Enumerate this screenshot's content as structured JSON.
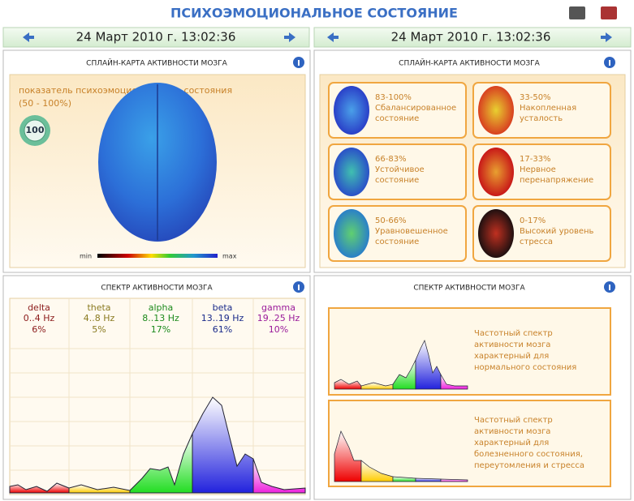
{
  "header": {
    "title": "ПСИХОЭМОЦИОНАЛЬНОЕ СОСТОЯНИЕ"
  },
  "nav": [
    {
      "datetime": "24 Март 2010 г. 13:02:36"
    },
    {
      "datetime": "24 Март 2010 г. 13:02:36"
    }
  ],
  "brain_map": {
    "title": "СПЛАЙН-КАРТА АКТИВНОСТИ МОЗГА",
    "indicator_label": "показатель психоэмоционального состояния",
    "indicator_range": "(50 - 100%)",
    "score": "100",
    "scale_min": "min",
    "scale_max": "max"
  },
  "legend": {
    "title": "СПЛАЙН-КАРТА АКТИВНОСТИ МОЗГА",
    "items": [
      {
        "range": "83-100%",
        "lines": [
          "Сбалансированное",
          "состояние"
        ]
      },
      {
        "range": "33-50%",
        "lines": [
          "Накопленная",
          "усталость"
        ]
      },
      {
        "range": "66-83%",
        "lines": [
          "Устойчивое",
          "состояние"
        ]
      },
      {
        "range": "17-33%",
        "lines": [
          "Нервное",
          "перенапряжение"
        ]
      },
      {
        "range": "50-66%",
        "lines": [
          "Уравновешенное",
          "состояние"
        ]
      },
      {
        "range": "0-17%",
        "lines": [
          "Высокий уровень",
          "стресса"
        ]
      }
    ]
  },
  "spectrum": {
    "title": "СПЕКТР АКТИВНОСТИ МОЗГА",
    "bands": [
      {
        "name": "delta",
        "freq": "0..4 Hz",
        "share": "6%"
      },
      {
        "name": "theta",
        "freq": "4..8 Hz",
        "share": "5%"
      },
      {
        "name": "alpha",
        "freq": "8..13 Hz",
        "share": "17%"
      },
      {
        "name": "beta",
        "freq": "13..19 Hz",
        "share": "61%"
      },
      {
        "name": "gamma",
        "freq": "19..25 Hz",
        "share": "10%"
      }
    ]
  },
  "reference": {
    "title": "СПЕКТР АКТИВНОСТИ МОЗГА",
    "cards": [
      {
        "lines": [
          "Частотный спектр",
          "активности мозга",
          "характерный для",
          "нормального состояния"
        ]
      },
      {
        "lines": [
          "Частотный спектр",
          "активности мозга",
          "характерный для",
          "болезненного состояния,",
          "переутомления и стресса"
        ]
      }
    ]
  }
}
